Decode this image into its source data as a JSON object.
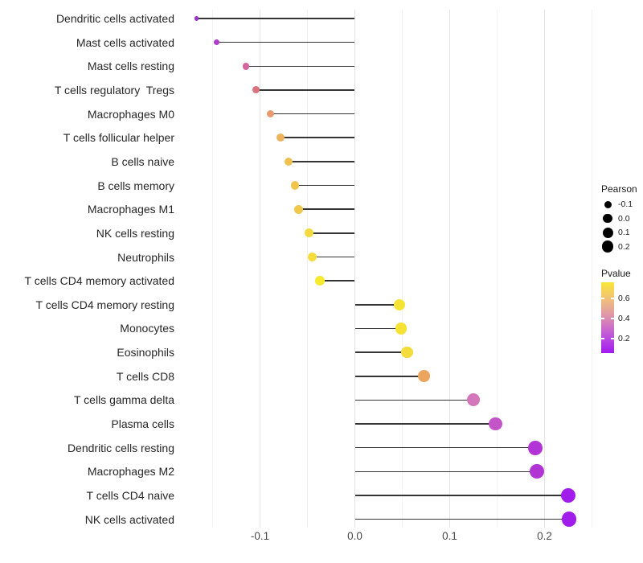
{
  "figure": {
    "background": "#ffffff"
  },
  "chart_data": {
    "type": "scatter",
    "variant": "horizontal-lollipop",
    "title": "",
    "xlabel": "",
    "ylabel": "",
    "grid": "vertical-only",
    "xlim": [
      -0.19,
      0.27
    ],
    "x_tick_values": [
      -0.1,
      0.0,
      0.1,
      0.2
    ],
    "x_tick_labels": [
      "-0.1",
      "0.0",
      "0.1",
      "0.2"
    ],
    "x_minor_gridline_values": [
      -0.15,
      -0.05,
      0.05,
      0.15,
      0.25
    ],
    "categories": [
      "Dendritic cells activated",
      "Mast cells activated",
      "Mast cells resting",
      "T cells regulatory  Tregs",
      "Macrophages M0",
      "T cells follicular helper",
      "B cells naive",
      "B cells memory",
      "Macrophages M1",
      "NK cells resting",
      "Neutrophils",
      "T cells CD4 memory activated",
      "T cells CD4 memory resting",
      "Monocytes",
      "Eosinophils",
      "T cells CD8",
      "T cells gamma delta",
      "Plasma cells",
      "Dendritic cells resting",
      "Macrophages M2",
      "T cells CD4 naive",
      "NK cells activated"
    ],
    "series": [
      {
        "name": "Pearson",
        "values": [
          -0.167,
          -0.146,
          -0.115,
          -0.104,
          -0.089,
          -0.078,
          -0.07,
          -0.063,
          -0.059,
          -0.048,
          -0.045,
          -0.037,
          0.047,
          0.049,
          0.055,
          0.073,
          0.125,
          0.148,
          0.19,
          0.192,
          0.225,
          0.226
        ]
      },
      {
        "name": "Pvalue (approx, encoded by color)",
        "values": [
          0.15,
          0.22,
          0.38,
          0.42,
          0.5,
          0.55,
          0.58,
          0.6,
          0.61,
          0.65,
          0.66,
          0.7,
          0.67,
          0.67,
          0.65,
          0.55,
          0.37,
          0.28,
          0.19,
          0.19,
          0.1,
          0.1
        ]
      }
    ],
    "point_colors": [
      "#9935CC",
      "#AE3FC9",
      "#D2689E",
      "#D9747F",
      "#E9996E",
      "#EDB25B",
      "#EFC052",
      "#F0C54E",
      "#F0C84C",
      "#F3DA40",
      "#F4DD3D",
      "#F6E92E",
      "#F5E433",
      "#F5E235",
      "#F4DC3C",
      "#EBA55F",
      "#D377BA",
      "#C455C8",
      "#B233D6",
      "#B134D5",
      "#A11DEC",
      "#A11DEC"
    ],
    "segment_color": "#343434",
    "legend_position": "right"
  },
  "legend": {
    "pearson": {
      "title": "Pearson",
      "items": [
        {
          "label": "-0.1",
          "value": -0.1
        },
        {
          "label": "0.0",
          "value": 0.0
        },
        {
          "label": "0.1",
          "value": 0.1
        },
        {
          "label": "0.2",
          "value": 0.2
        }
      ],
      "dot_color": "#000000"
    },
    "pvalue": {
      "title": "Pvalue",
      "tick_labels": [
        "0.6",
        "0.4",
        "0.2"
      ],
      "tick_values": [
        0.6,
        0.4,
        0.2
      ],
      "bar_range_top_to_bottom": [
        0.76,
        0.055
      ],
      "gradient_top_to_bottom": [
        "#F9E636",
        "#EFBE7E",
        "#DC8FB0",
        "#BE55D9",
        "#A21AF0"
      ]
    }
  }
}
